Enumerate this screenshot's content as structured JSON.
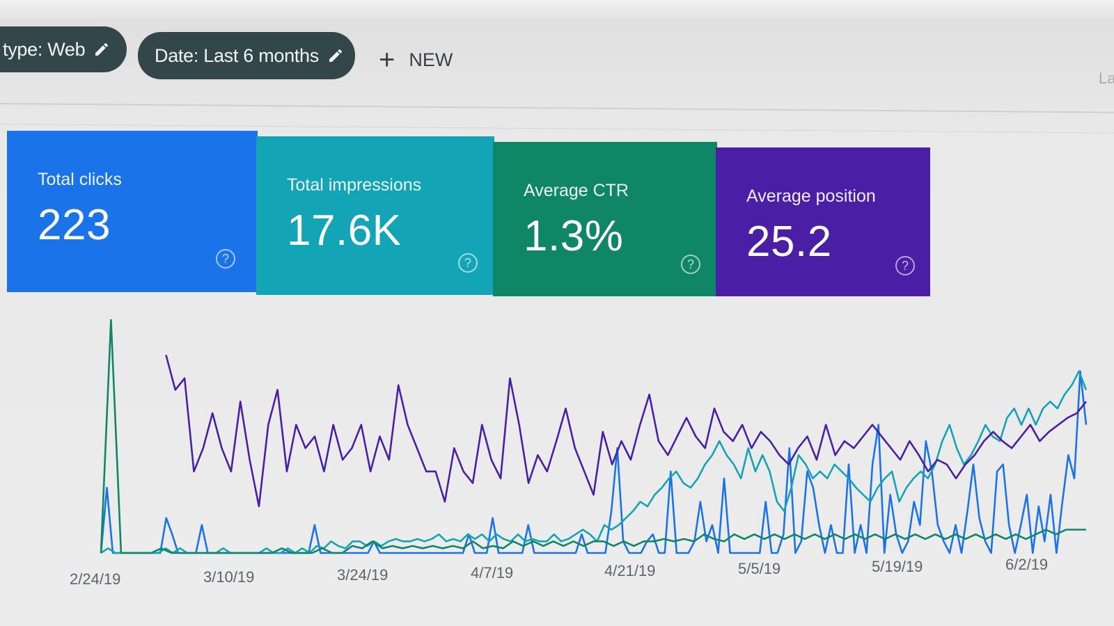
{
  "filters": {
    "type_chip": "type: Web",
    "date_chip": "Date: Last 6 months",
    "new_label": "NEW",
    "edge_text": "La"
  },
  "metrics": [
    {
      "label": "Total clicks",
      "value": "223",
      "color": "#1a73e8"
    },
    {
      "label": "Total impressions",
      "value": "17.6K",
      "color": "#13a5b6"
    },
    {
      "label": "Average CTR",
      "value": "1.3%",
      "color": "#0f8767"
    },
    {
      "label": "Average position",
      "value": "25.2",
      "color": "#4a1ea5"
    }
  ],
  "icons": {
    "help": "question-circle-icon",
    "edit": "pencil-icon",
    "add": "plus-icon"
  },
  "chart_data": {
    "type": "line",
    "x_tick_labels": [
      "2/24/19",
      "3/10/19",
      "3/24/19",
      "4/7/19",
      "4/21/19",
      "5/5/19",
      "5/19/19",
      "6/2/19"
    ],
    "y_axis": "unlabeled",
    "grid": false,
    "series": [
      {
        "color": "#1a73e8",
        "values": [
          0.0,
          0.28,
          0.0,
          0.0,
          0.0,
          0.0,
          0.0,
          0.0,
          0.0,
          0.0,
          0.0,
          0.15,
          0.08,
          0.0,
          0.0,
          0.0,
          0.0,
          0.12,
          0.0,
          0.0,
          0.0,
          0.0,
          0.0,
          0.0,
          0.0,
          0.0,
          0.0,
          0.0,
          0.0,
          0.0,
          0.0,
          0.0,
          0.0,
          0.0,
          0.0,
          0.0,
          0.12,
          0.0,
          0.0,
          0.0,
          0.0,
          0.0,
          0.0,
          0.0,
          0.0,
          0.0,
          0.05,
          0.0,
          0.0,
          0.0,
          0.0,
          0.0,
          0.0,
          0.0,
          0.0,
          0.0,
          0.0,
          0.0,
          0.0,
          0.0,
          0.0,
          0.0,
          0.08,
          0.0,
          0.0,
          0.0,
          0.15,
          0.0,
          0.0,
          0.0,
          0.0,
          0.0,
          0.12,
          0.0,
          0.0,
          0.0,
          0.0,
          0.0,
          0.0,
          0.0,
          0.0,
          0.08,
          0.0,
          0.0,
          0.0,
          0.0,
          0.18,
          0.45,
          0.05,
          0.0,
          0.0,
          0.0,
          0.05,
          0.08,
          0.0,
          0.0,
          0.35,
          0.0,
          0.0,
          0.0,
          0.05,
          0.22,
          0.05,
          0.12,
          0.0,
          0.32,
          0.0,
          0.0,
          0.0,
          0.0,
          0.0,
          0.0,
          0.22,
          0.0,
          0.0,
          0.08,
          0.45,
          0.0,
          0.05,
          0.35,
          0.28,
          0.12,
          0.0,
          0.12,
          0.0,
          0.0,
          0.38,
          0.0,
          0.12,
          0.0,
          0.38,
          0.55,
          0.0,
          0.25,
          0.08,
          0.0,
          0.05,
          0.22,
          0.12,
          0.48,
          0.35,
          0.12,
          0.05,
          0.0,
          0.12,
          0.0,
          0.18,
          0.38,
          0.15,
          0.05,
          0.0,
          0.35,
          0.38,
          0.12,
          0.0,
          0.12,
          0.25,
          0.0,
          0.2,
          0.05,
          0.25,
          0.0,
          0.22,
          0.42,
          0.32,
          0.78,
          0.55
        ]
      },
      {
        "color": "#13a5b6",
        "values": [
          0.0,
          0.02,
          0.0,
          0.0,
          0.0,
          0.0,
          0.0,
          0.0,
          0.0,
          0.02,
          0.0,
          0.02,
          0.0,
          0.0,
          0.0,
          0.0,
          0.0,
          0.02,
          0.0,
          0.0,
          0.0,
          0.0,
          0.0,
          0.02,
          0.0,
          0.0,
          0.02,
          0.0,
          0.02,
          0.0,
          0.03,
          0.02,
          0.05,
          0.03,
          0.02,
          0.05,
          0.05,
          0.03,
          0.05,
          0.03,
          0.05,
          0.06,
          0.05,
          0.05,
          0.06,
          0.05,
          0.06,
          0.08,
          0.05,
          0.06,
          0.05,
          0.08,
          0.06,
          0.08,
          0.05,
          0.08,
          0.06,
          0.05,
          0.08,
          0.05,
          0.06,
          0.05,
          0.05,
          0.08,
          0.05,
          0.06,
          0.08,
          0.1,
          0.08,
          0.05,
          0.12,
          0.1,
          0.12,
          0.15,
          0.18,
          0.22,
          0.2,
          0.25,
          0.28,
          0.32,
          0.35,
          0.3,
          0.28,
          0.32,
          0.38,
          0.42,
          0.48,
          0.42,
          0.38,
          0.32,
          0.45,
          0.35,
          0.42,
          0.35,
          0.22,
          0.18,
          0.28,
          0.42,
          0.38,
          0.32,
          0.35,
          0.32,
          0.38,
          0.35,
          0.32,
          0.28,
          0.25,
          0.22,
          0.28,
          0.32,
          0.35,
          0.22,
          0.28,
          0.32,
          0.35,
          0.32,
          0.38,
          0.48,
          0.55,
          0.45,
          0.38,
          0.42,
          0.48,
          0.55,
          0.5,
          0.48,
          0.58,
          0.62,
          0.55,
          0.62,
          0.55,
          0.62,
          0.65,
          0.62,
          0.68,
          0.72,
          0.78,
          0.7
        ]
      },
      {
        "color": "#0f8767",
        "values": [
          0.0,
          1.0,
          0.0,
          0.0,
          0.0,
          0.0,
          0.02,
          0.0,
          0.0,
          0.0,
          0.0,
          0.0,
          0.0,
          0.0,
          0.0,
          0.0,
          0.0,
          0.0,
          0.02,
          0.0,
          0.0,
          0.0,
          0.02,
          0.0,
          0.0,
          0.03,
          0.02,
          0.05,
          0.02,
          0.03,
          0.02,
          0.03,
          0.02,
          0.03,
          0.02,
          0.03,
          0.02,
          0.05,
          0.02,
          0.03,
          0.02,
          0.05,
          0.03,
          0.05,
          0.03,
          0.05,
          0.03,
          0.05,
          0.03,
          0.05,
          0.05,
          0.03,
          0.05,
          0.03,
          0.05,
          0.05,
          0.06,
          0.05,
          0.06,
          0.05,
          0.08,
          0.06,
          0.05,
          0.08,
          0.06,
          0.08,
          0.06,
          0.08,
          0.06,
          0.08,
          0.06,
          0.08,
          0.06,
          0.08,
          0.06,
          0.08,
          0.06,
          0.08,
          0.06,
          0.08,
          0.06,
          0.08,
          0.06,
          0.08,
          0.06,
          0.08,
          0.06,
          0.08,
          0.06,
          0.08,
          0.06,
          0.08,
          0.06,
          0.08,
          0.1,
          0.08,
          0.1,
          0.1,
          0.1
        ]
      },
      {
        "color": "#4a1ea5",
        "values": [
          null,
          null,
          null,
          null,
          null,
          null,
          null,
          0.85,
          0.7,
          0.75,
          0.35,
          0.45,
          0.6,
          0.45,
          0.35,
          0.65,
          0.4,
          0.2,
          0.55,
          0.7,
          0.35,
          0.55,
          0.45,
          0.5,
          0.35,
          0.55,
          0.4,
          0.45,
          0.55,
          0.35,
          0.5,
          0.4,
          0.72,
          0.55,
          0.45,
          0.35,
          0.35,
          0.22,
          0.45,
          0.35,
          0.3,
          0.55,
          0.4,
          0.32,
          0.75,
          0.55,
          0.3,
          0.42,
          0.35,
          0.48,
          0.62,
          0.45,
          0.35,
          0.25,
          0.52,
          0.38,
          0.48,
          0.4,
          0.55,
          0.68,
          0.48,
          0.42,
          0.5,
          0.58,
          0.5,
          0.45,
          0.62,
          0.52,
          0.48,
          0.55,
          0.45,
          0.52,
          0.48,
          0.42,
          0.38,
          0.45,
          0.5,
          0.4,
          0.55,
          0.42,
          0.48,
          0.45,
          0.5,
          0.55,
          0.5,
          0.45,
          0.4,
          0.48,
          0.42,
          0.35,
          0.4,
          0.38,
          0.32,
          0.38,
          0.42,
          0.48,
          0.52,
          0.48,
          0.45,
          0.5,
          0.55,
          0.48,
          0.52,
          0.55,
          0.58,
          0.6,
          0.65
        ]
      }
    ]
  }
}
